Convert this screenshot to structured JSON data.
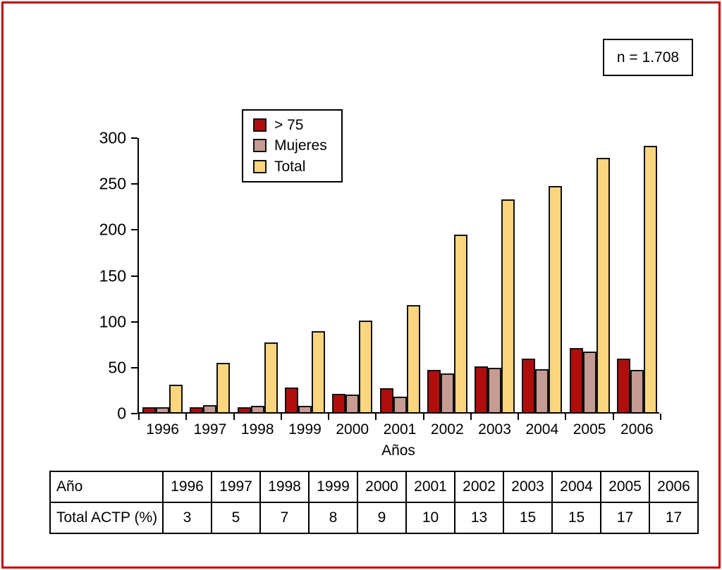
{
  "figure": {
    "sample_size_label": "n = 1.708",
    "frame_color": "#c00000",
    "axis_color": "#000000"
  },
  "chart_data": {
    "type": "bar",
    "title": "",
    "xlabel": "Años",
    "ylabel": "",
    "ylim": [
      0,
      300
    ],
    "yticks": [
      0,
      50,
      100,
      150,
      200,
      250,
      300
    ],
    "grid": false,
    "legend_position": "top-center",
    "categories": [
      "1996",
      "1997",
      "1998",
      "1999",
      "2000",
      "2001",
      "2002",
      "2003",
      "2004",
      "2005",
      "2006"
    ],
    "series": [
      {
        "name": "> 75",
        "color": "#b00d0d",
        "values": [
          5,
          5,
          5,
          27,
          20,
          26,
          46,
          50,
          58,
          70,
          58
        ]
      },
      {
        "name": "Mujeres",
        "color": "#c69b94",
        "values": [
          5,
          8,
          7,
          7,
          19,
          17,
          42,
          48,
          47,
          66,
          46
        ]
      },
      {
        "name": "Total",
        "color": "#fcd67e",
        "values": [
          30,
          54,
          76,
          88,
          100,
          117,
          193,
          232,
          246,
          277,
          290
        ]
      }
    ]
  },
  "table": {
    "rows": [
      {
        "label": "Año",
        "values": [
          "1996",
          "1997",
          "1998",
          "1999",
          "2000",
          "2001",
          "2002",
          "2003",
          "2004",
          "2005",
          "2006"
        ]
      },
      {
        "label": "Total ACTP (%)",
        "values": [
          "3",
          "5",
          "7",
          "8",
          "9",
          "10",
          "13",
          "15",
          "15",
          "17",
          "17"
        ]
      }
    ]
  }
}
